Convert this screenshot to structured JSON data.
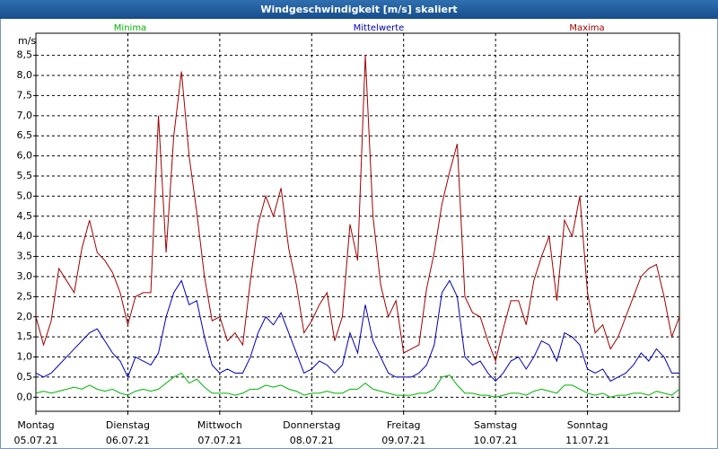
{
  "chart_data": {
    "type": "line",
    "title": "Windgeschwindigkeit [m/s] skaliert",
    "y_unit": "m/s",
    "x": [
      0,
      2,
      4,
      6,
      8,
      10,
      12,
      14,
      16,
      18,
      20,
      22,
      24,
      26,
      28,
      30,
      32,
      34,
      36,
      38,
      40,
      42,
      44,
      46,
      48,
      50,
      52,
      54,
      56,
      58,
      60,
      62,
      64,
      66,
      68,
      70,
      72,
      74,
      76,
      78,
      80,
      82,
      84,
      86,
      88,
      90,
      92,
      94,
      96,
      98,
      100,
      102,
      104,
      106,
      108,
      110,
      112,
      114,
      116,
      118,
      120,
      122,
      124,
      126,
      128,
      130,
      132,
      134,
      136,
      138,
      140,
      142,
      144,
      146,
      148,
      150,
      152,
      154,
      156,
      158,
      160,
      162,
      164,
      166,
      168
    ],
    "xlim": [
      0,
      168
    ],
    "xticks": [
      {
        "value": 0,
        "label": "Montag",
        "date": "05.07.21"
      },
      {
        "value": 24,
        "label": "Dienstag",
        "date": "06.07.21"
      },
      {
        "value": 48,
        "label": "Mittwoch",
        "date": "07.07.21"
      },
      {
        "value": 72,
        "label": "Donnerstag",
        "date": "08.07.21"
      },
      {
        "value": 96,
        "label": "Freitag",
        "date": "09.07.21"
      },
      {
        "value": 120,
        "label": "Samstag",
        "date": "10.07.21"
      },
      {
        "value": 144,
        "label": "Sonntag",
        "date": "11.07.21"
      }
    ],
    "ylim": [
      -0.35,
      9.05
    ],
    "yticks": [
      {
        "value": 0,
        "label": "0,0"
      },
      {
        "value": 0.5,
        "label": "0,5"
      },
      {
        "value": 1,
        "label": "1,0"
      },
      {
        "value": 1.5,
        "label": "1,5"
      },
      {
        "value": 2,
        "label": "2,0"
      },
      {
        "value": 2.5,
        "label": "2,5"
      },
      {
        "value": 3,
        "label": "3,0"
      },
      {
        "value": 3.5,
        "label": "3,5"
      },
      {
        "value": 4,
        "label": "4,0"
      },
      {
        "value": 4.5,
        "label": "4,5"
      },
      {
        "value": 5,
        "label": "5,0"
      },
      {
        "value": 5.5,
        "label": "5,5"
      },
      {
        "value": 6,
        "label": "6,0"
      },
      {
        "value": 6.5,
        "label": "6,5"
      },
      {
        "value": 7,
        "label": "7,0"
      },
      {
        "value": 7.5,
        "label": "7,5"
      },
      {
        "value": 8,
        "label": "8,0"
      },
      {
        "value": 8.5,
        "label": "8,5"
      }
    ],
    "grid": true,
    "series": [
      {
        "name": "Minima",
        "color": "#00b400",
        "values": [
          0.1,
          0.15,
          0.1,
          0.15,
          0.2,
          0.25,
          0.2,
          0.3,
          0.2,
          0.15,
          0.2,
          0.1,
          0.05,
          0.15,
          0.2,
          0.15,
          0.2,
          0.35,
          0.5,
          0.6,
          0.35,
          0.45,
          0.25,
          0.1,
          0.1,
          0.1,
          0.05,
          0.1,
          0.2,
          0.2,
          0.3,
          0.25,
          0.3,
          0.2,
          0.15,
          0.05,
          0.1,
          0.1,
          0.15,
          0.1,
          0.1,
          0.2,
          0.2,
          0.35,
          0.2,
          0.15,
          0.1,
          0.05,
          0.05,
          0.05,
          0.1,
          0.1,
          0.2,
          0.5,
          0.55,
          0.3,
          0.1,
          0.1,
          0.05,
          0.05,
          0.0,
          0.05,
          0.1,
          0.1,
          0.05,
          0.15,
          0.2,
          0.15,
          0.1,
          0.3,
          0.3,
          0.2,
          0.1,
          0.05,
          0.1,
          0.0,
          0.05,
          0.05,
          0.1,
          0.1,
          0.05,
          0.15,
          0.1,
          0.05,
          0.2
        ]
      },
      {
        "name": "Mittelwerte",
        "color": "#0000b4",
        "values": [
          0.6,
          0.5,
          0.6,
          0.8,
          1.0,
          1.2,
          1.4,
          1.6,
          1.7,
          1.4,
          1.1,
          0.9,
          0.5,
          1.0,
          0.9,
          0.8,
          1.1,
          2.0,
          2.6,
          2.9,
          2.3,
          2.4,
          1.5,
          0.8,
          0.6,
          0.7,
          0.6,
          0.6,
          1.0,
          1.6,
          2.0,
          1.8,
          2.1,
          1.6,
          1.1,
          0.6,
          0.7,
          0.9,
          0.8,
          0.6,
          0.8,
          1.6,
          1.1,
          2.3,
          1.4,
          1.0,
          0.6,
          0.5,
          0.5,
          0.5,
          0.6,
          0.8,
          1.3,
          2.6,
          2.9,
          2.5,
          1.0,
          0.8,
          0.9,
          0.6,
          0.4,
          0.6,
          0.9,
          1.0,
          0.7,
          1.0,
          1.4,
          1.3,
          0.9,
          1.6,
          1.5,
          1.3,
          0.7,
          0.6,
          0.7,
          0.4,
          0.5,
          0.6,
          0.8,
          1.1,
          0.9,
          1.2,
          1.0,
          0.6,
          0.6
        ]
      },
      {
        "name": "Maxima",
        "color": "#a00000",
        "values": [
          2.0,
          1.3,
          1.9,
          3.2,
          2.9,
          2.6,
          3.7,
          4.4,
          3.6,
          3.4,
          3.1,
          2.6,
          1.8,
          2.5,
          2.6,
          2.6,
          7.0,
          3.6,
          6.5,
          8.1,
          6.0,
          4.6,
          3.0,
          1.9,
          2.0,
          1.4,
          1.6,
          1.3,
          2.9,
          4.3,
          5.0,
          4.5,
          5.2,
          3.7,
          2.8,
          1.6,
          1.9,
          2.3,
          2.6,
          1.4,
          2.0,
          4.3,
          3.4,
          8.5,
          4.5,
          2.8,
          2.0,
          2.4,
          1.1,
          1.2,
          1.3,
          2.7,
          3.6,
          4.8,
          5.6,
          6.3,
          2.5,
          2.1,
          2.0,
          1.4,
          0.9,
          1.7,
          2.4,
          2.4,
          1.8,
          2.9,
          3.5,
          4.0,
          2.4,
          4.4,
          4.0,
          5.0,
          2.6,
          1.6,
          1.8,
          1.2,
          1.5,
          2.0,
          2.5,
          3.0,
          3.2,
          3.3,
          2.5,
          1.5,
          2.0
        ]
      }
    ]
  }
}
